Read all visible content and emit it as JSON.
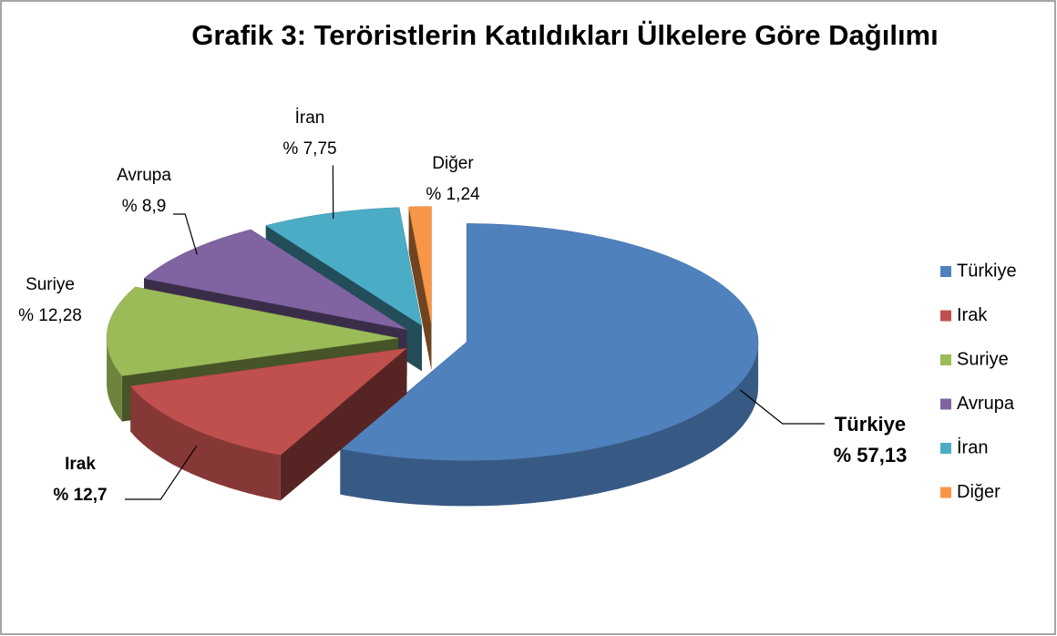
{
  "chart_data": {
    "type": "pie3d",
    "title": "Grafik 3: Teröristlerin Katıldıkları Ülkelere Göre Dağılımı",
    "categories": [
      "Türkiye",
      "Irak",
      "Suriye",
      "Avrupa",
      "İran",
      "Diğer"
    ],
    "values": [
      57.13,
      12.7,
      12.28,
      8.9,
      7.75,
      1.24
    ],
    "value_labels": [
      "% 57,13",
      "% 12,7",
      "% 12,28",
      "% 8,9",
      "% 7,75",
      "% 1,24"
    ],
    "colors": [
      "#4f81bd",
      "#c0504d",
      "#9bbb59",
      "#8064a2",
      "#4bacc6",
      "#f79646"
    ],
    "legend": "right"
  }
}
